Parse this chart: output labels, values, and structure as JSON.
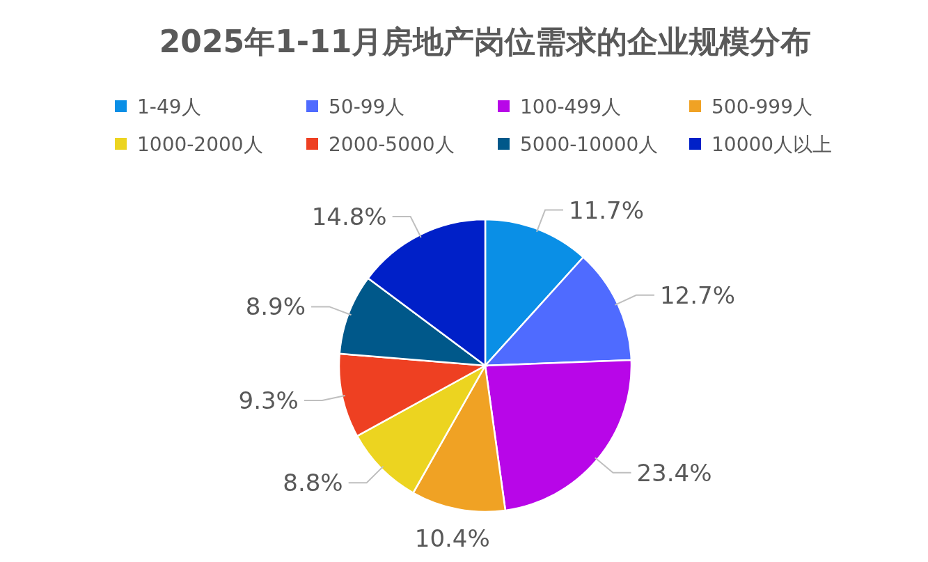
{
  "chart_data": {
    "type": "pie",
    "title": "2025年1-11月房地产岗位需求的企业规模分布",
    "categories": [
      "1-49人",
      "50-99人",
      "100-499人",
      "500-999人",
      "1000-2000人",
      "2000-5000人",
      "5000-10000人",
      "10000人以上"
    ],
    "values": [
      11.7,
      12.7,
      23.4,
      10.4,
      8.8,
      9.3,
      8.9,
      14.8
    ],
    "colors": [
      "#0a8fe6",
      "#4f6bff",
      "#b806e8",
      "#f0a224",
      "#ecd420",
      "#ee4022",
      "#00588a",
      "#0020c8"
    ],
    "value_labels": [
      "11.7%",
      "12.7%",
      "23.4%",
      "10.4%",
      "8.8%",
      "9.3%",
      "8.9%",
      "14.8%"
    ],
    "legend": "top"
  }
}
